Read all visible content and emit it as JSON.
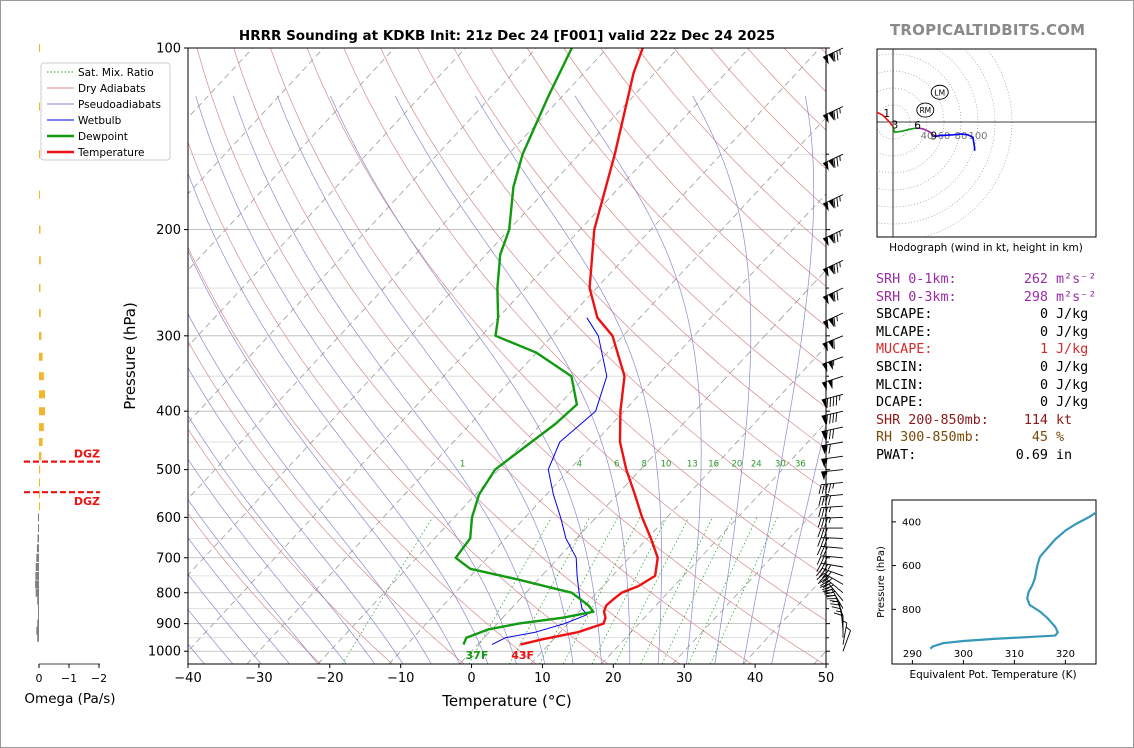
{
  "brand": "TROPICALTIDBITS.COM",
  "colors": {
    "temperature": "#ee1111",
    "dewpoint": "#129a12",
    "wetbulb": "#0000ee",
    "srh": "#9a2aa8",
    "mucape": "#d42a2a",
    "shr": "#8b1a1a",
    "rh": "#7a4a0a",
    "omega_up": "#f5b52a",
    "omega_down": "#808080",
    "theta_e": "#3797b9"
  },
  "chart_data": [
    {
      "type": "line",
      "name": "skewt",
      "title": "HRRR Sounding at KDKB Init: 21z Dec 24 [F001] valid 22z Dec 24 2025",
      "xlabel": "Temperature (°C)",
      "ylabel": "Pressure (hPa)",
      "xlim": [
        -40,
        50
      ],
      "ylim": [
        1050,
        100
      ],
      "yscale": "log",
      "x_ticks": [
        -40,
        -30,
        -20,
        -10,
        0,
        10,
        20,
        30,
        40,
        50
      ],
      "y_ticks": [
        100,
        200,
        300,
        400,
        500,
        600,
        700,
        800,
        900,
        1000
      ],
      "legend": [
        "Sat. Mix. Ratio",
        "Dry Adiabats",
        "Pseudoadiabats",
        "Wetbulb",
        "Dewpoint",
        "Temperature"
      ],
      "legend_position": "top-left",
      "mixing_ratio_labels": [
        "1",
        "4",
        "6",
        "8",
        "10",
        "13",
        "16",
        "20",
        "24",
        "30",
        "36"
      ],
      "surface_dewpoint_label": "37F",
      "surface_temperature_label": "43F",
      "series": [
        {
          "name": "Temperature",
          "points": [
            [
              975,
              6.0
            ],
            [
              955,
              8.5
            ],
            [
              930,
              12.5
            ],
            [
              900,
              15.0
            ],
            [
              880,
              14.5
            ],
            [
              860,
              13.5
            ],
            [
              840,
              13.0
            ],
            [
              820,
              13.2
            ],
            [
              800,
              13.5
            ],
            [
              780,
              15.0
            ],
            [
              750,
              16.0
            ],
            [
              700,
              14.0
            ],
            [
              650,
              10.5
            ],
            [
              600,
              6.5
            ],
            [
              550,
              2.5
            ],
            [
              500,
              -2.0
            ],
            [
              450,
              -6.5
            ],
            [
              400,
              -10.5
            ],
            [
              350,
              -14.5
            ],
            [
              300,
              -21.5
            ],
            [
              280,
              -26.0
            ],
            [
              250,
              -31.0
            ],
            [
              200,
              -38.0
            ],
            [
              150,
              -45.0
            ],
            [
              110,
              -53.0
            ],
            [
              100,
              -55.0
            ]
          ]
        },
        {
          "name": "Dewpoint",
          "points": [
            [
              975,
              -2.0
            ],
            [
              950,
              -2.5
            ],
            [
              920,
              -0.5
            ],
            [
              900,
              3.0
            ],
            [
              880,
              8.5
            ],
            [
              860,
              12.0
            ],
            [
              840,
              10.5
            ],
            [
              800,
              6.5
            ],
            [
              760,
              -3.0
            ],
            [
              730,
              -11.0
            ],
            [
              700,
              -14.5
            ],
            [
              650,
              -15.0
            ],
            [
              600,
              -17.5
            ],
            [
              550,
              -19.5
            ],
            [
              500,
              -20.5
            ],
            [
              450,
              -19.0
            ],
            [
              420,
              -18.0
            ],
            [
              390,
              -17.5
            ],
            [
              350,
              -22.0
            ],
            [
              320,
              -30.0
            ],
            [
              300,
              -38.0
            ],
            [
              280,
              -40.0
            ],
            [
              250,
              -44.0
            ],
            [
              220,
              -48.0
            ],
            [
              200,
              -50.0
            ],
            [
              170,
              -55.0
            ],
            [
              150,
              -58.0
            ],
            [
              120,
              -62.0
            ],
            [
              100,
              -65.0
            ]
          ]
        },
        {
          "name": "Wetbulb",
          "points": [
            [
              975,
              2.0
            ],
            [
              950,
              3.0
            ],
            [
              930,
              6.5
            ],
            [
              900,
              9.5
            ],
            [
              870,
              11.5
            ],
            [
              850,
              10.0
            ],
            [
              820,
              8.5
            ],
            [
              800,
              7.5
            ],
            [
              750,
              5.0
            ],
            [
              700,
              2.5
            ],
            [
              650,
              -1.5
            ],
            [
              600,
              -5.0
            ],
            [
              550,
              -9.0
            ],
            [
              500,
              -13.0
            ],
            [
              450,
              -15.0
            ],
            [
              400,
              -14.0
            ],
            [
              350,
              -17.0
            ],
            [
              300,
              -23.5
            ],
            [
              280,
              -27.5
            ]
          ]
        }
      ]
    },
    {
      "type": "bar",
      "name": "omega",
      "xlabel": "Omega (Pa/s)",
      "x_ticks": [
        "0",
        "−1",
        "−2"
      ],
      "dgz_label": "DGZ",
      "dgz_pressures": [
        485,
        545
      ],
      "levels": [
        100,
        125,
        150,
        175,
        200,
        225,
        250,
        275,
        300,
        325,
        350,
        375,
        400,
        425,
        450,
        475,
        500,
        525,
        550,
        575,
        600,
        625,
        650,
        675,
        700,
        725,
        750,
        775,
        800,
        825,
        850,
        875,
        900,
        925,
        950
      ],
      "values": [
        -0.02,
        -0.03,
        -0.03,
        -0.03,
        -0.05,
        -0.06,
        -0.05,
        -0.06,
        -0.08,
        -0.12,
        -0.16,
        -0.2,
        -0.2,
        -0.16,
        -0.12,
        -0.08,
        -0.04,
        -0.02,
        -0.02,
        -0.01,
        0.02,
        0.03,
        0.05,
        0.07,
        0.09,
        0.11,
        0.12,
        0.13,
        0.11,
        0.06,
        0.03,
        0.02,
        0.06,
        0.09,
        0.06
      ]
    },
    {
      "type": "line",
      "name": "hodograph",
      "title": "Hodograph (wind in kt, height in km)",
      "ring_labels": [
        "40",
        "60",
        "80",
        "100"
      ],
      "height_labels": [
        "1",
        "3",
        "6",
        "9"
      ],
      "storm_motion_labels": [
        "LM",
        "RM"
      ],
      "series": [
        {
          "name": "0-1 km",
          "color": "#ee1111",
          "points": [
            [
              -23,
              2
            ],
            [
              -24,
              5
            ],
            [
              -23,
              10
            ],
            [
              -18,
              11
            ],
            [
              -12,
              8
            ],
            [
              -8,
              4
            ],
            [
              -5,
              1
            ]
          ]
        },
        {
          "name": "1-3 km",
          "color": "#ee1111",
          "points": [
            [
              -5,
              1
            ],
            [
              -2,
              -3
            ],
            [
              0,
              -5
            ]
          ]
        },
        {
          "name": "3-6 km",
          "color": "#129a12",
          "points": [
            [
              0,
              -5
            ],
            [
              1,
              -9
            ],
            [
              2,
              -12
            ],
            [
              10,
              -11
            ],
            [
              22,
              -8
            ],
            [
              29,
              -7
            ]
          ]
        },
        {
          "name": "6-9 km",
          "color": "#9a2aa8",
          "points": [
            [
              29,
              -7
            ],
            [
              35,
              -8
            ],
            [
              42,
              -11
            ],
            [
              46,
              -14
            ],
            [
              48,
              -16
            ]
          ]
        },
        {
          "name": "9-12 km",
          "color": "#0000ee",
          "points": [
            [
              48,
              -16
            ],
            [
              50,
              -17
            ],
            [
              55,
              -16
            ],
            [
              71,
              -15
            ],
            [
              80,
              -14
            ],
            [
              88,
              -15
            ],
            [
              94,
              -18
            ],
            [
              96,
              -30
            ],
            [
              96,
              -34
            ]
          ]
        }
      ]
    },
    {
      "type": "line",
      "name": "theta_e",
      "xlabel": "Equivalent Pot. Temperature (K)",
      "ylabel": "Pressure (hPa)",
      "x_ticks": [
        290,
        300,
        310,
        320
      ],
      "y_ticks": [
        400,
        600,
        800
      ],
      "xlim": [
        286,
        326
      ],
      "ylim": [
        1050,
        300
      ],
      "series": [
        {
          "name": "theta-e",
          "points": [
            [
              293.5,
              980
            ],
            [
              294,
              970
            ],
            [
              296,
              955
            ],
            [
              300,
              945
            ],
            [
              306,
              935
            ],
            [
              314,
              925
            ],
            [
              318,
              920
            ],
            [
              318.5,
              905
            ],
            [
              318,
              880
            ],
            [
              316.5,
              840
            ],
            [
              315,
              810
            ],
            [
              313,
              780
            ],
            [
              312.5,
              750
            ],
            [
              312.8,
              720
            ],
            [
              313.5,
              690
            ],
            [
              314,
              660
            ],
            [
              314.5,
              600
            ],
            [
              315,
              560
            ],
            [
              316.5,
              520
            ],
            [
              318,
              480
            ],
            [
              320,
              440
            ],
            [
              322,
              410
            ],
            [
              324.5,
              380
            ],
            [
              326.5,
              350
            ],
            [
              327.5,
              330
            ],
            [
              327.8,
              315
            ],
            [
              327.8,
              300
            ]
          ]
        }
      ]
    }
  ],
  "params": {
    "rows": [
      {
        "label": "SRH 0-1km:",
        "value": "262",
        "unit": "m²s⁻²",
        "color": "srh"
      },
      {
        "label": "SRH 0-3km:",
        "value": "298",
        "unit": "m²s⁻²",
        "color": "srh"
      },
      {
        "label": "SBCAPE:",
        "value": "0",
        "unit": "J/kg",
        "color": ""
      },
      {
        "label": "MLCAPE:",
        "value": "0",
        "unit": "J/kg",
        "color": ""
      },
      {
        "label": "MUCAPE:",
        "value": "1",
        "unit": "J/kg",
        "color": "mucape"
      },
      {
        "label": "SBCIN:",
        "value": "0",
        "unit": "J/kg",
        "color": ""
      },
      {
        "label": "MLCIN:",
        "value": "0",
        "unit": "J/kg",
        "color": ""
      },
      {
        "label": "DCAPE:",
        "value": "0",
        "unit": "J/kg",
        "color": ""
      },
      {
        "label": "SHR 200-850mb:",
        "value": "114",
        "unit": "kt",
        "color": "shr"
      },
      {
        "label": "RH 300-850mb:",
        "value": "45",
        "unit": "%",
        "color": "rh"
      },
      {
        "label": "PWAT:",
        "value": "0.69",
        "unit": "in",
        "color": ""
      }
    ]
  },
  "wind_barbs": {
    "levels": [
      100,
      125,
      150,
      175,
      200,
      225,
      250,
      275,
      300,
      325,
      350,
      375,
      400,
      425,
      450,
      475,
      500,
      525,
      550,
      575,
      600,
      625,
      650,
      675,
      700,
      725,
      750,
      775,
      800,
      825,
      850,
      875,
      900,
      925,
      950,
      975,
      1000
    ],
    "speed_kt": [
      125,
      125,
      125,
      125,
      125,
      125,
      120,
      115,
      110,
      105,
      100,
      95,
      90,
      80,
      70,
      60,
      55,
      45,
      40,
      35,
      35,
      30,
      30,
      30,
      30,
      35,
      40,
      40,
      40,
      35,
      30,
      25,
      20,
      15,
      10,
      5,
      5
    ],
    "direction_deg": [
      245,
      245,
      245,
      245,
      245,
      245,
      245,
      245,
      248,
      250,
      252,
      255,
      257,
      258,
      260,
      262,
      264,
      264,
      265,
      266,
      268,
      270,
      272,
      275,
      275,
      280,
      290,
      300,
      310,
      320,
      330,
      340,
      350,
      355,
      360,
      10,
      20
    ]
  }
}
